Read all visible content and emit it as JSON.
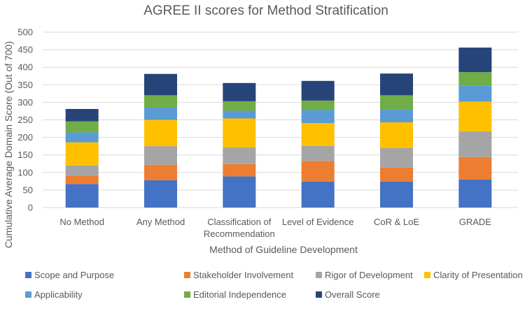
{
  "chart_data": {
    "type": "bar",
    "stacked": true,
    "title": "AGREE II scores for Method Stratification",
    "xlabel": "Method of Guideline Development",
    "ylabel": "Cumulative Average Domain Score (Out of 700)",
    "ylim": [
      0,
      500
    ],
    "yticks": [
      0,
      50,
      100,
      150,
      200,
      250,
      300,
      350,
      400,
      450,
      500
    ],
    "grid": true,
    "legend_position": "bottom",
    "categories": [
      [
        "No Method"
      ],
      [
        "Any Method"
      ],
      [
        "Classification of",
        "Recommendation"
      ],
      [
        "Level of Evidence"
      ],
      [
        "CoR & LoE"
      ],
      [
        "GRADE"
      ]
    ],
    "series": [
      {
        "name": "Scope and Purpose",
        "color": "#4472c4",
        "values": [
          67,
          78,
          89,
          74,
          74,
          80
        ]
      },
      {
        "name": "Stakeholder Involvement",
        "color": "#ed7d31",
        "values": [
          24,
          44,
          35,
          59,
          40,
          64
        ]
      },
      {
        "name": "Rigor of Development",
        "color": "#a5a5a5",
        "values": [
          29,
          53,
          48,
          43,
          56,
          73
        ]
      },
      {
        "name": "Clarity of Presentation",
        "color": "#ffc000",
        "values": [
          66,
          75,
          82,
          65,
          73,
          85
        ]
      },
      {
        "name": "Applicability",
        "color": "#5b9bd5",
        "values": [
          28,
          35,
          22,
          37,
          37,
          46
        ]
      },
      {
        "name": "Editorial Independence",
        "color": "#70ad47",
        "values": [
          32,
          35,
          27,
          27,
          40,
          38
        ]
      },
      {
        "name": "Overall Score",
        "color": "#264478",
        "values": [
          35,
          61,
          52,
          56,
          62,
          70
        ]
      }
    ]
  }
}
